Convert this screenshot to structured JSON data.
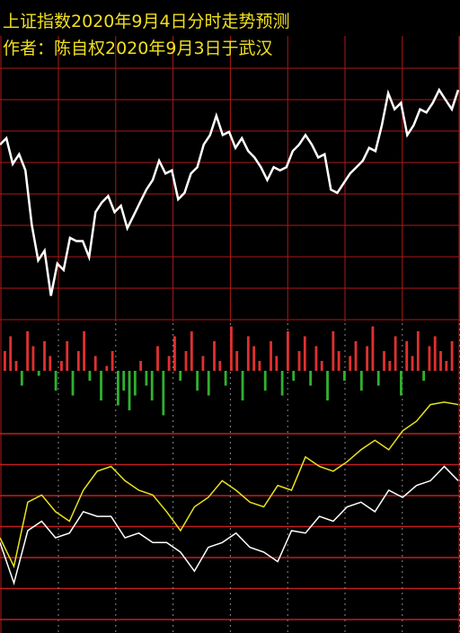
{
  "chart_data": [
    {
      "type": "line",
      "title": "上证指数2020年9月4日分时走势预测",
      "subtitle": "作者：陈自权2020年9月3日于武汉",
      "ylim": [
        0,
        100
      ],
      "series": [
        {
          "color": "#ffffff",
          "values": [
            55,
            57,
            49,
            52,
            47,
            30,
            19,
            22,
            8,
            18,
            16,
            26,
            25,
            25,
            20,
            34,
            37,
            39,
            34,
            36,
            29,
            33,
            37,
            41,
            44,
            50,
            46,
            47,
            38,
            40,
            46,
            48,
            55,
            58,
            64,
            58,
            59,
            54,
            57,
            53,
            51,
            48,
            44,
            48,
            47,
            48,
            53,
            55,
            58,
            55,
            51,
            52,
            41,
            40,
            43,
            46,
            48,
            50,
            54,
            53,
            61,
            71,
            66,
            68,
            58,
            61,
            66,
            65,
            68,
            72,
            69,
            66,
            72
          ]
        }
      ]
    },
    {
      "type": "bar",
      "ylim": [
        -50,
        50
      ],
      "up_color": "#e03030",
      "down_color": "#30b030",
      "values": [
        20,
        35,
        10,
        -15,
        40,
        25,
        -5,
        30,
        15,
        -20,
        10,
        30,
        -25,
        20,
        40,
        -10,
        15,
        -30,
        5,
        20,
        -35,
        -20,
        -40,
        -25,
        10,
        -15,
        -30,
        25,
        -45,
        15,
        35,
        -10,
        20,
        40,
        -20,
        15,
        -25,
        30,
        10,
        -15,
        45,
        20,
        -30,
        35,
        25,
        10,
        -20,
        30,
        15,
        -25,
        40,
        -10,
        20,
        35,
        -15,
        25,
        10,
        -30,
        40,
        20,
        -10,
        15,
        30,
        -20,
        25,
        45,
        -15,
        20,
        10,
        35,
        -25,
        30,
        15,
        40,
        -10,
        25,
        35,
        20,
        10,
        30
      ]
    },
    {
      "type": "line",
      "ylim": [
        0,
        100
      ],
      "series": [
        {
          "color": "#e8e020",
          "values": [
            40,
            28,
            55,
            58,
            51,
            47,
            60,
            68,
            70,
            64,
            60,
            58,
            51,
            43,
            53,
            57,
            64,
            60,
            55,
            53,
            62,
            60,
            74,
            70,
            68,
            72,
            77,
            81,
            77,
            85,
            89,
            96,
            97,
            96
          ]
        },
        {
          "color": "#ffffff",
          "values": [
            38,
            21,
            43,
            47,
            40,
            42,
            51,
            49,
            49,
            40,
            42,
            38,
            38,
            34,
            26,
            36,
            38,
            42,
            36,
            34,
            30,
            43,
            42,
            49,
            47,
            53,
            55,
            51,
            60,
            57,
            62,
            64,
            70,
            64
          ]
        }
      ]
    }
  ]
}
